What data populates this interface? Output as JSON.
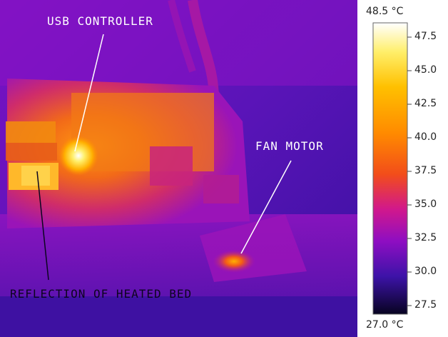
{
  "annotations": {
    "usb_controller": "USB CONTROLLER",
    "fan_motor": "FAN MOTOR",
    "reflection": "REFLECTION OF HEATED BED"
  },
  "scale": {
    "max_label": "48.5 °C",
    "min_label": "27.0 °C",
    "ticks": [
      "47.5",
      "45.0",
      "42.5",
      "40.0",
      "37.5",
      "35.0",
      "32.5",
      "30.0",
      "27.5"
    ],
    "palette": [
      "#ffffff",
      "#ffef6a",
      "#ffc000",
      "#ff8a00",
      "#f24d1a",
      "#d1188c",
      "#8e0ec2",
      "#3d13a8",
      "#070320"
    ]
  }
}
